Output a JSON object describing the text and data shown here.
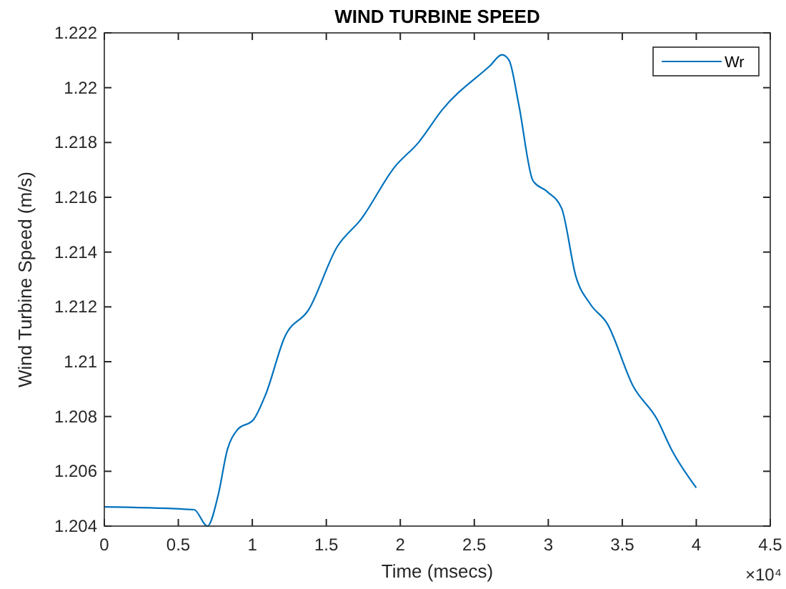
{
  "chart_data": {
    "type": "line",
    "title": "WIND TURBINE SPEED",
    "xlabel": "Time (msecs)",
    "ylabel": "Wind Turbine Speed (m/s)",
    "annotations": [
      "×10⁴"
    ],
    "x": [
      0,
      0.606,
      0.697,
      0.768,
      0.832,
      0.897,
      1.01,
      1.09,
      1.219,
      1.381,
      1.574,
      1.735,
      1.961,
      2.123,
      2.284,
      2.606,
      2.687,
      2.735,
      2.8,
      2.897,
      2.994,
      3.09,
      3.187,
      3.284,
      3.397,
      3.574,
      3.735,
      3.832,
      4.0
    ],
    "series": [
      {
        "name": "Wr",
        "color": "#0072bd",
        "values": [
          1.2047,
          1.2046,
          1.204,
          1.2051,
          1.2068,
          1.2075,
          1.2079,
          1.2088,
          1.2109,
          1.2119,
          1.2142,
          1.2152,
          1.2171,
          1.218,
          1.2192,
          1.2208,
          1.2212,
          1.221,
          1.2194,
          1.2166,
          1.2162,
          1.2156,
          1.2131,
          1.2121,
          1.2114,
          1.2091,
          1.2079,
          1.2068,
          1.2054
        ]
      }
    ],
    "xlim": [
      0,
      4.5
    ],
    "xticks": [
      0,
      0.5,
      1,
      1.5,
      2,
      2.5,
      3,
      3.5,
      4,
      4.5
    ],
    "ylim": [
      1.204,
      1.222
    ],
    "yticks": [
      {
        "value": 1.204,
        "label": "1.204"
      },
      {
        "value": 1.206,
        "label": "1.206"
      },
      {
        "value": 1.208,
        "label": "1.208"
      },
      {
        "value": 1.21,
        "label": "1.21"
      },
      {
        "value": 1.212,
        "label": "1.212"
      },
      {
        "value": 1.214,
        "label": "1.214"
      },
      {
        "value": 1.216,
        "label": "1.216"
      },
      {
        "value": 1.218,
        "label": "1.218"
      },
      {
        "value": 1.22,
        "label": "1.22"
      },
      {
        "value": 1.222,
        "label": "1.222"
      }
    ],
    "legend": "top right",
    "line_style": "solid",
    "marker": "none"
  }
}
